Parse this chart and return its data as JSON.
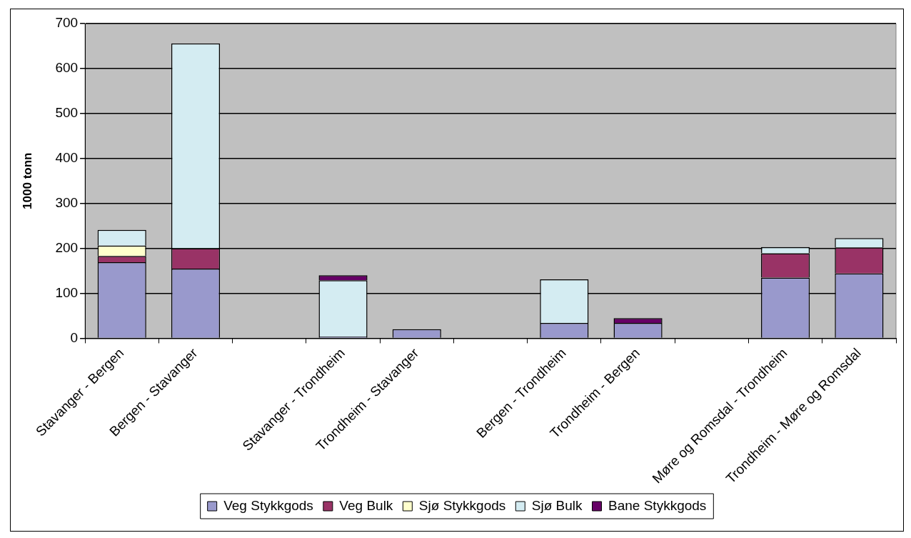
{
  "chart_data": {
    "type": "bar",
    "stacked": true,
    "ylabel": "1000 tonn",
    "categories": [
      "Stavanger - Bergen",
      "Bergen - Stavanger",
      null,
      "Stavanger - Trondheim",
      "Trondheim - Stavanger",
      null,
      "Bergen - Trondheim",
      "Trondheim - Bergen",
      null,
      "Møre og Romsdal - Trondheim",
      "Trondheim - Møre og Romsdal"
    ],
    "series": [
      {
        "name": "Veg Stykkgods",
        "color": "#9999cc",
        "values": [
          169,
          155,
          null,
          4,
          20,
          null,
          34,
          34,
          null,
          135,
          144
        ]
      },
      {
        "name": "Veg Bulk",
        "color": "#993366",
        "values": [
          14,
          45,
          null,
          0,
          0,
          null,
          0,
          0,
          null,
          54,
          58
        ]
      },
      {
        "name": "Sjø Stykkgods",
        "color": "#ffffcc",
        "values": [
          23,
          null,
          null,
          0,
          0,
          null,
          0,
          0,
          null,
          null,
          null
        ]
      },
      {
        "name": "Sjø Bulk",
        "color": "#d4ecf2",
        "values": [
          35,
          456,
          null,
          125,
          0,
          null,
          97,
          0,
          null,
          14,
          21
        ]
      },
      {
        "name": "Bane Stykkgods",
        "color": "#660066",
        "values": [
          0,
          0,
          null,
          11,
          0,
          null,
          0,
          11,
          null,
          0,
          0
        ]
      }
    ],
    "ylim": [
      0,
      700
    ],
    "yticks": [
      0,
      100,
      200,
      300,
      400,
      500,
      600,
      700
    ],
    "grid": "y",
    "legend": "bottom"
  }
}
